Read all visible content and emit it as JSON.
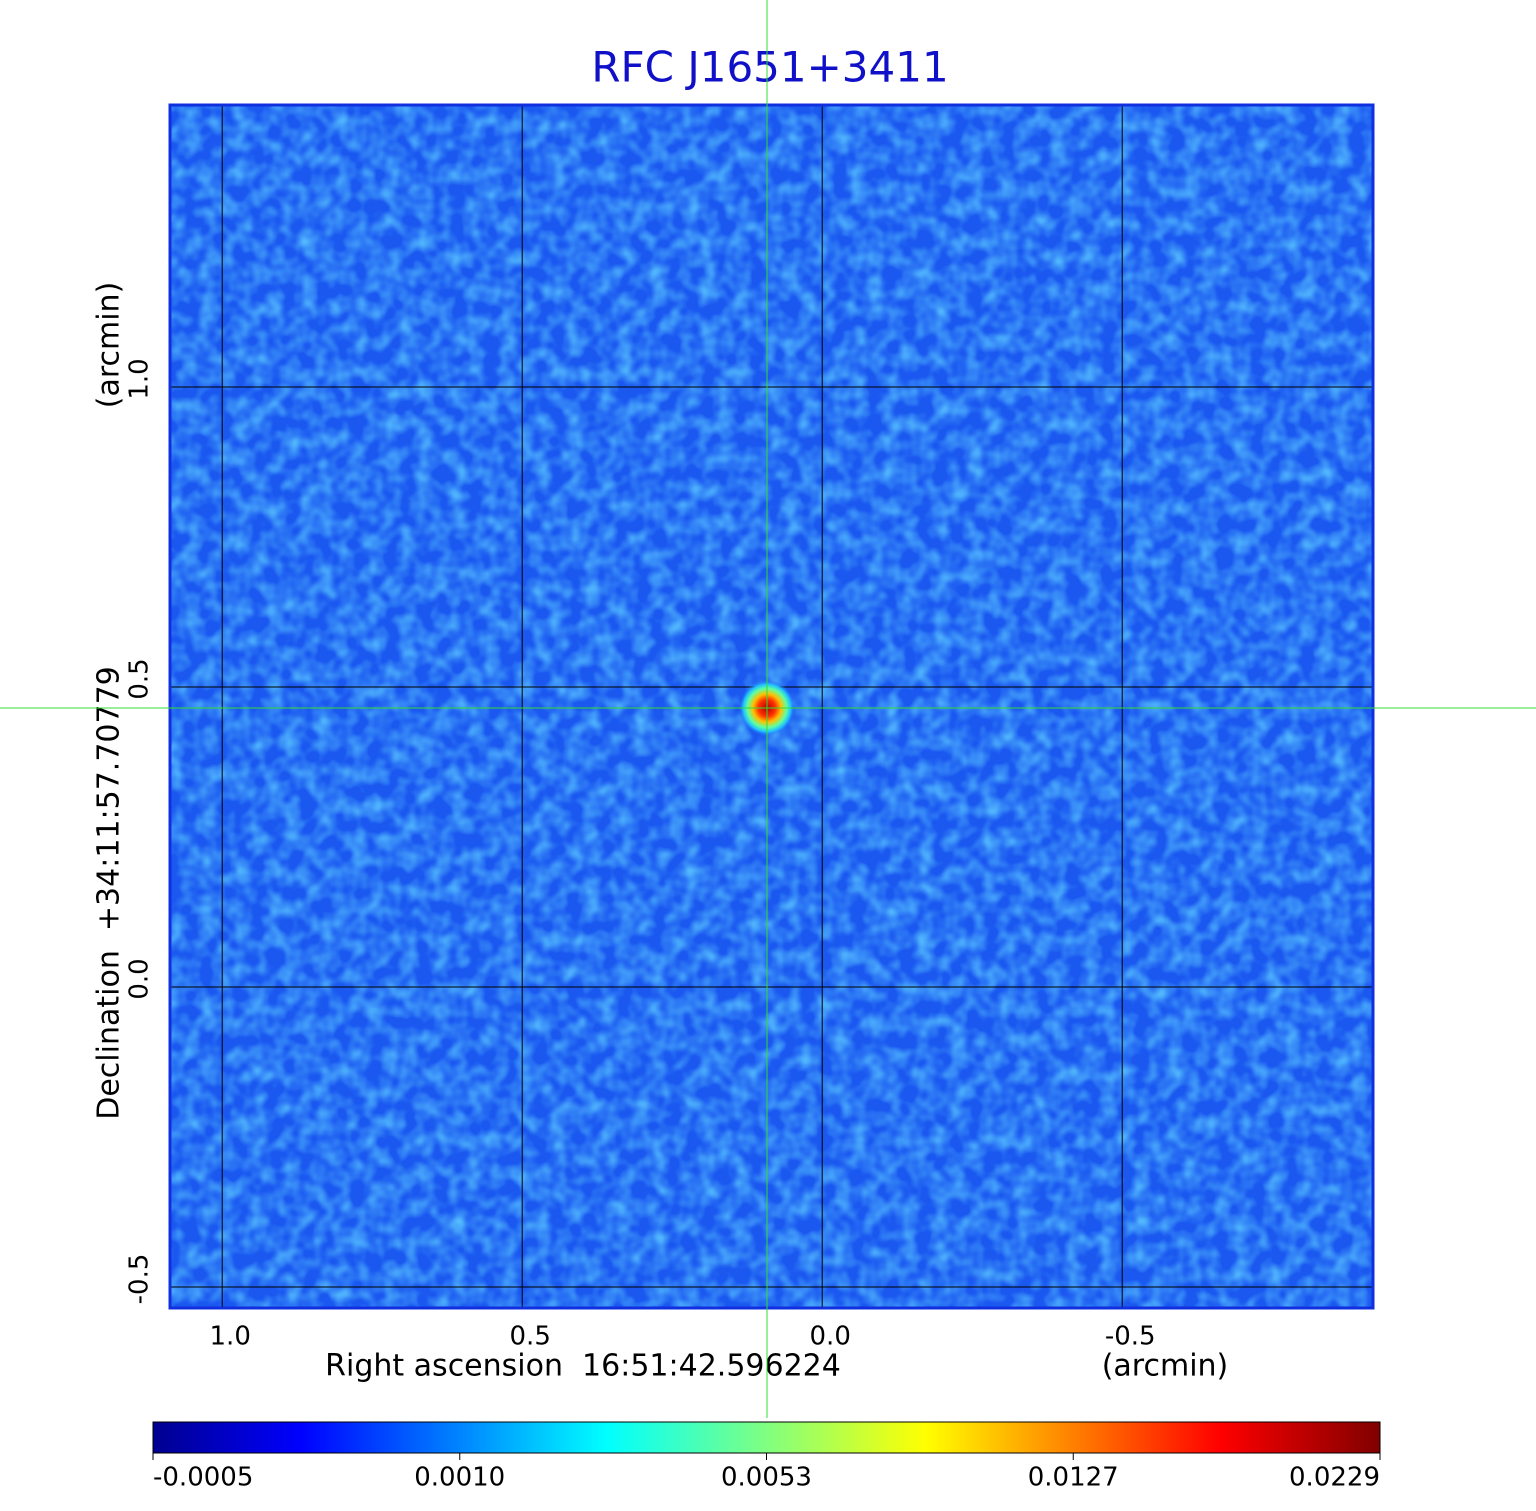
{
  "chart_data": {
    "type": "image",
    "title": "RFC J1651+3411",
    "x_label": "Right ascension  16:51:42.596224",
    "x_unit": "(arcmin)",
    "y_label": "Declination  +34:11:57.70779",
    "y_unit": "(arcmin)",
    "xlim": [
      1.087,
      -0.918
    ],
    "ylim": [
      -0.535,
      1.47
    ],
    "xticks": [
      {
        "value": 1,
        "label": "1.0"
      },
      0.5,
      {
        "value": 0,
        "label": "0.0"
      },
      -0.5
    ],
    "yticks": [
      -0.5,
      {
        "value": 0,
        "label": "0.0"
      },
      0.5,
      {
        "value": 1,
        "label": "1.0"
      }
    ],
    "grid": true,
    "marker": {
      "x": 0.092,
      "y": 0.465,
      "color": "#33dd33"
    },
    "colorbar": {
      "ticks": [
        -0.0005,
        {
          "value": 0.001,
          "label": "0.0010"
        },
        0.0053,
        0.0127,
        0.0229
      ]
    }
  }
}
